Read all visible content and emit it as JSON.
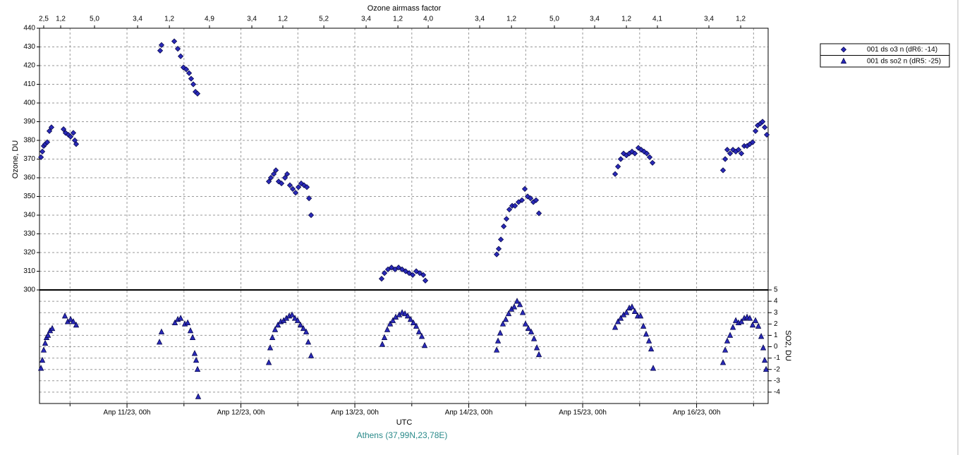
{
  "chart_data": [
    {
      "type": "scatter",
      "x2label": "Ozone airmass factor",
      "x2ticks": [
        {
          "value": 10.269,
          "label": "2,5"
        },
        {
          "value": 10.418,
          "label": "1,2"
        },
        {
          "value": 10.715,
          "label": "5,0"
        },
        {
          "value": 11.093,
          "label": "3,4"
        },
        {
          "value": 11.372,
          "label": "1,2"
        },
        {
          "value": 11.724,
          "label": "4,9"
        },
        {
          "value": 12.096,
          "label": "3,4"
        },
        {
          "value": 12.368,
          "label": "1,2"
        },
        {
          "value": 12.728,
          "label": "5,2"
        },
        {
          "value": 13.099,
          "label": "3,4"
        },
        {
          "value": 13.378,
          "label": "1,2"
        },
        {
          "value": 13.644,
          "label": "4,0"
        },
        {
          "value": 14.096,
          "label": "3,4"
        },
        {
          "value": 14.375,
          "label": "1,2"
        },
        {
          "value": 14.752,
          "label": "5,0"
        },
        {
          "value": 15.105,
          "label": "3,4"
        },
        {
          "value": 15.384,
          "label": "1,2"
        },
        {
          "value": 15.656,
          "label": "4,1"
        },
        {
          "value": 16.108,
          "label": "3,4"
        },
        {
          "value": 16.387,
          "label": "1,2"
        }
      ],
      "xlabel": "UTC",
      "annotation": "Athens (37,99N,23,78E)",
      "ylabel": "Ozone, DU",
      "xlim": [
        10.232,
        16.628
      ],
      "xticks": [
        {
          "value": 11,
          "label": "Апр 11/23, 00h"
        },
        {
          "value": 12,
          "label": "Апр 12/23, 00h"
        },
        {
          "value": 13,
          "label": "Апр 13/23, 00h"
        },
        {
          "value": 14,
          "label": "Апр 14/23, 00h"
        },
        {
          "value": 15,
          "label": "Апр 15/23, 00h"
        },
        {
          "value": 16,
          "label": "Апр 16/23, 00h"
        }
      ],
      "xminorticks": [
        10.5,
        11.5,
        12.5,
        13.5,
        14.5,
        15.5,
        16.5
      ],
      "ylim": [
        300,
        440
      ],
      "yticks": [
        300,
        310,
        320,
        330,
        340,
        350,
        360,
        370,
        380,
        390,
        400,
        410,
        420,
        430,
        440
      ],
      "grid": true,
      "legend": "upper right",
      "series": [
        {
          "name": "001 ds o3  n (dR6: -14)",
          "color": "#2a2ab8",
          "marker": "diamond",
          "x": [
            10.245,
            10.257,
            10.269,
            10.282,
            10.3,
            10.319,
            10.337,
            10.443,
            10.461,
            10.486,
            10.505,
            10.529,
            10.542,
            10.554,
            11.291,
            11.303,
            11.415,
            11.446,
            11.471,
            11.495,
            11.52,
            11.545,
            11.563,
            11.582,
            11.601,
            11.619,
            12.245,
            12.263,
            12.288,
            12.307,
            12.331,
            12.356,
            12.387,
            12.406,
            12.43,
            12.455,
            12.48,
            12.505,
            12.529,
            12.554,
            12.579,
            12.598,
            12.616,
            13.235,
            13.26,
            13.291,
            13.322,
            13.353,
            13.384,
            13.415,
            13.446,
            13.477,
            13.508,
            13.539,
            13.57,
            13.601,
            13.619,
            14.245,
            14.263,
            14.282,
            14.307,
            14.331,
            14.356,
            14.381,
            14.406,
            14.437,
            14.467,
            14.492,
            14.517,
            14.542,
            14.567,
            14.591,
            14.616,
            15.285,
            15.31,
            15.334,
            15.359,
            15.384,
            15.409,
            15.433,
            15.458,
            15.489,
            15.514,
            15.539,
            15.563,
            15.588,
            15.613,
            16.232,
            16.251,
            16.269,
            16.294,
            16.319,
            16.344,
            16.368,
            16.393,
            16.418,
            16.443,
            16.467,
            16.492,
            16.517,
            16.536,
            16.56,
            16.579,
            16.598,
            16.616
          ],
          "values": [
            371,
            374,
            377,
            378,
            379,
            385,
            387,
            386,
            384,
            383,
            382,
            384,
            380,
            378,
            428,
            431,
            433,
            429,
            425,
            419,
            418,
            416,
            413,
            410,
            406,
            405,
            358,
            360,
            362,
            364,
            358,
            357,
            360,
            362,
            356,
            354,
            352,
            355,
            357,
            356,
            355,
            349,
            340,
            306,
            309,
            311,
            312,
            311,
            312,
            311,
            310,
            309,
            308,
            310,
            309,
            308,
            305,
            319,
            322,
            327,
            334,
            338,
            343,
            345,
            345,
            347,
            348,
            354,
            350,
            349,
            347,
            348,
            341,
            362,
            366,
            370,
            373,
            372,
            373,
            374,
            373,
            376,
            375,
            374,
            373,
            371,
            368,
            364,
            370,
            375,
            373,
            375,
            374,
            375,
            373,
            377,
            377,
            378,
            379,
            385,
            388,
            389,
            390,
            387,
            383
          ]
        }
      ]
    },
    {
      "type": "scatter",
      "ylabel": "SO2, DU",
      "yaxis": "right",
      "xlim": [
        10.232,
        16.628
      ],
      "ylim": [
        -5,
        5
      ],
      "yticks": [
        -4,
        -3,
        -2,
        -1,
        0,
        1,
        2,
        3,
        4,
        5
      ],
      "grid": true,
      "series": [
        {
          "name": "001 ds so2 n (dR5: -25)",
          "color": "#2a2ab8",
          "marker": "triangle",
          "x": [
            10.245,
            10.257,
            10.269,
            10.282,
            10.294,
            10.307,
            10.325,
            10.344,
            10.455,
            10.48,
            10.505,
            10.529,
            10.554,
            11.285,
            11.303,
            11.421,
            11.446,
            11.471,
            11.508,
            11.533,
            11.557,
            11.576,
            11.594,
            11.607,
            11.619,
            11.625,
            12.245,
            12.257,
            12.276,
            12.3,
            12.325,
            12.35,
            12.375,
            12.399,
            12.424,
            12.449,
            12.474,
            12.498,
            12.523,
            12.548,
            12.573,
            12.591,
            12.616,
            13.241,
            13.26,
            13.285,
            13.31,
            13.334,
            13.359,
            13.39,
            13.415,
            13.44,
            13.464,
            13.489,
            13.514,
            13.539,
            13.563,
            13.588,
            13.613,
            14.245,
            14.257,
            14.276,
            14.3,
            14.325,
            14.35,
            14.375,
            14.399,
            14.424,
            14.449,
            14.474,
            14.498,
            14.523,
            14.548,
            14.573,
            14.598,
            14.616,
            15.285,
            15.31,
            15.334,
            15.359,
            15.384,
            15.409,
            15.433,
            15.458,
            15.483,
            15.508,
            15.533,
            15.557,
            15.582,
            15.601,
            15.619,
            16.232,
            16.251,
            16.269,
            16.294,
            16.319,
            16.344,
            16.368,
            16.393,
            16.418,
            16.443,
            16.467,
            16.492,
            16.517,
            16.542,
            16.567,
            16.585,
            16.598,
            16.61
          ],
          "values": [
            -1.9,
            -1.2,
            -0.3,
            0.3,
            0.8,
            1.0,
            1.4,
            1.6,
            2.7,
            2.2,
            2.4,
            2.2,
            1.9,
            0.4,
            1.3,
            2.1,
            2.4,
            2.5,
            2.0,
            2.1,
            1.4,
            0.8,
            -0.6,
            -1.2,
            -2.0,
            -4.4,
            -1.4,
            -0.1,
            0.8,
            1.5,
            1.9,
            2.2,
            2.3,
            2.5,
            2.7,
            2.8,
            2.5,
            2.3,
            1.9,
            1.6,
            1.3,
            0.4,
            -0.8,
            0.2,
            0.8,
            1.5,
            2.0,
            2.3,
            2.6,
            2.8,
            3.0,
            2.9,
            2.7,
            2.4,
            2.1,
            1.8,
            1.3,
            0.9,
            0.1,
            -0.3,
            0.5,
            1.2,
            2.0,
            2.4,
            2.9,
            3.3,
            3.5,
            4.0,
            3.7,
            3.0,
            2.0,
            1.6,
            1.3,
            0.7,
            -0.1,
            -0.7,
            1.7,
            2.2,
            2.5,
            2.8,
            3.0,
            3.4,
            3.5,
            3.1,
            2.7,
            2.7,
            1.8,
            1.1,
            0.5,
            -0.2,
            -1.9,
            -1.4,
            -0.3,
            0.5,
            1.0,
            1.7,
            2.3,
            2.1,
            2.2,
            2.5,
            2.6,
            2.5,
            1.9,
            2.3,
            1.8,
            0.9,
            -0.1,
            -1.2,
            -2.0
          ]
        }
      ]
    }
  ]
}
